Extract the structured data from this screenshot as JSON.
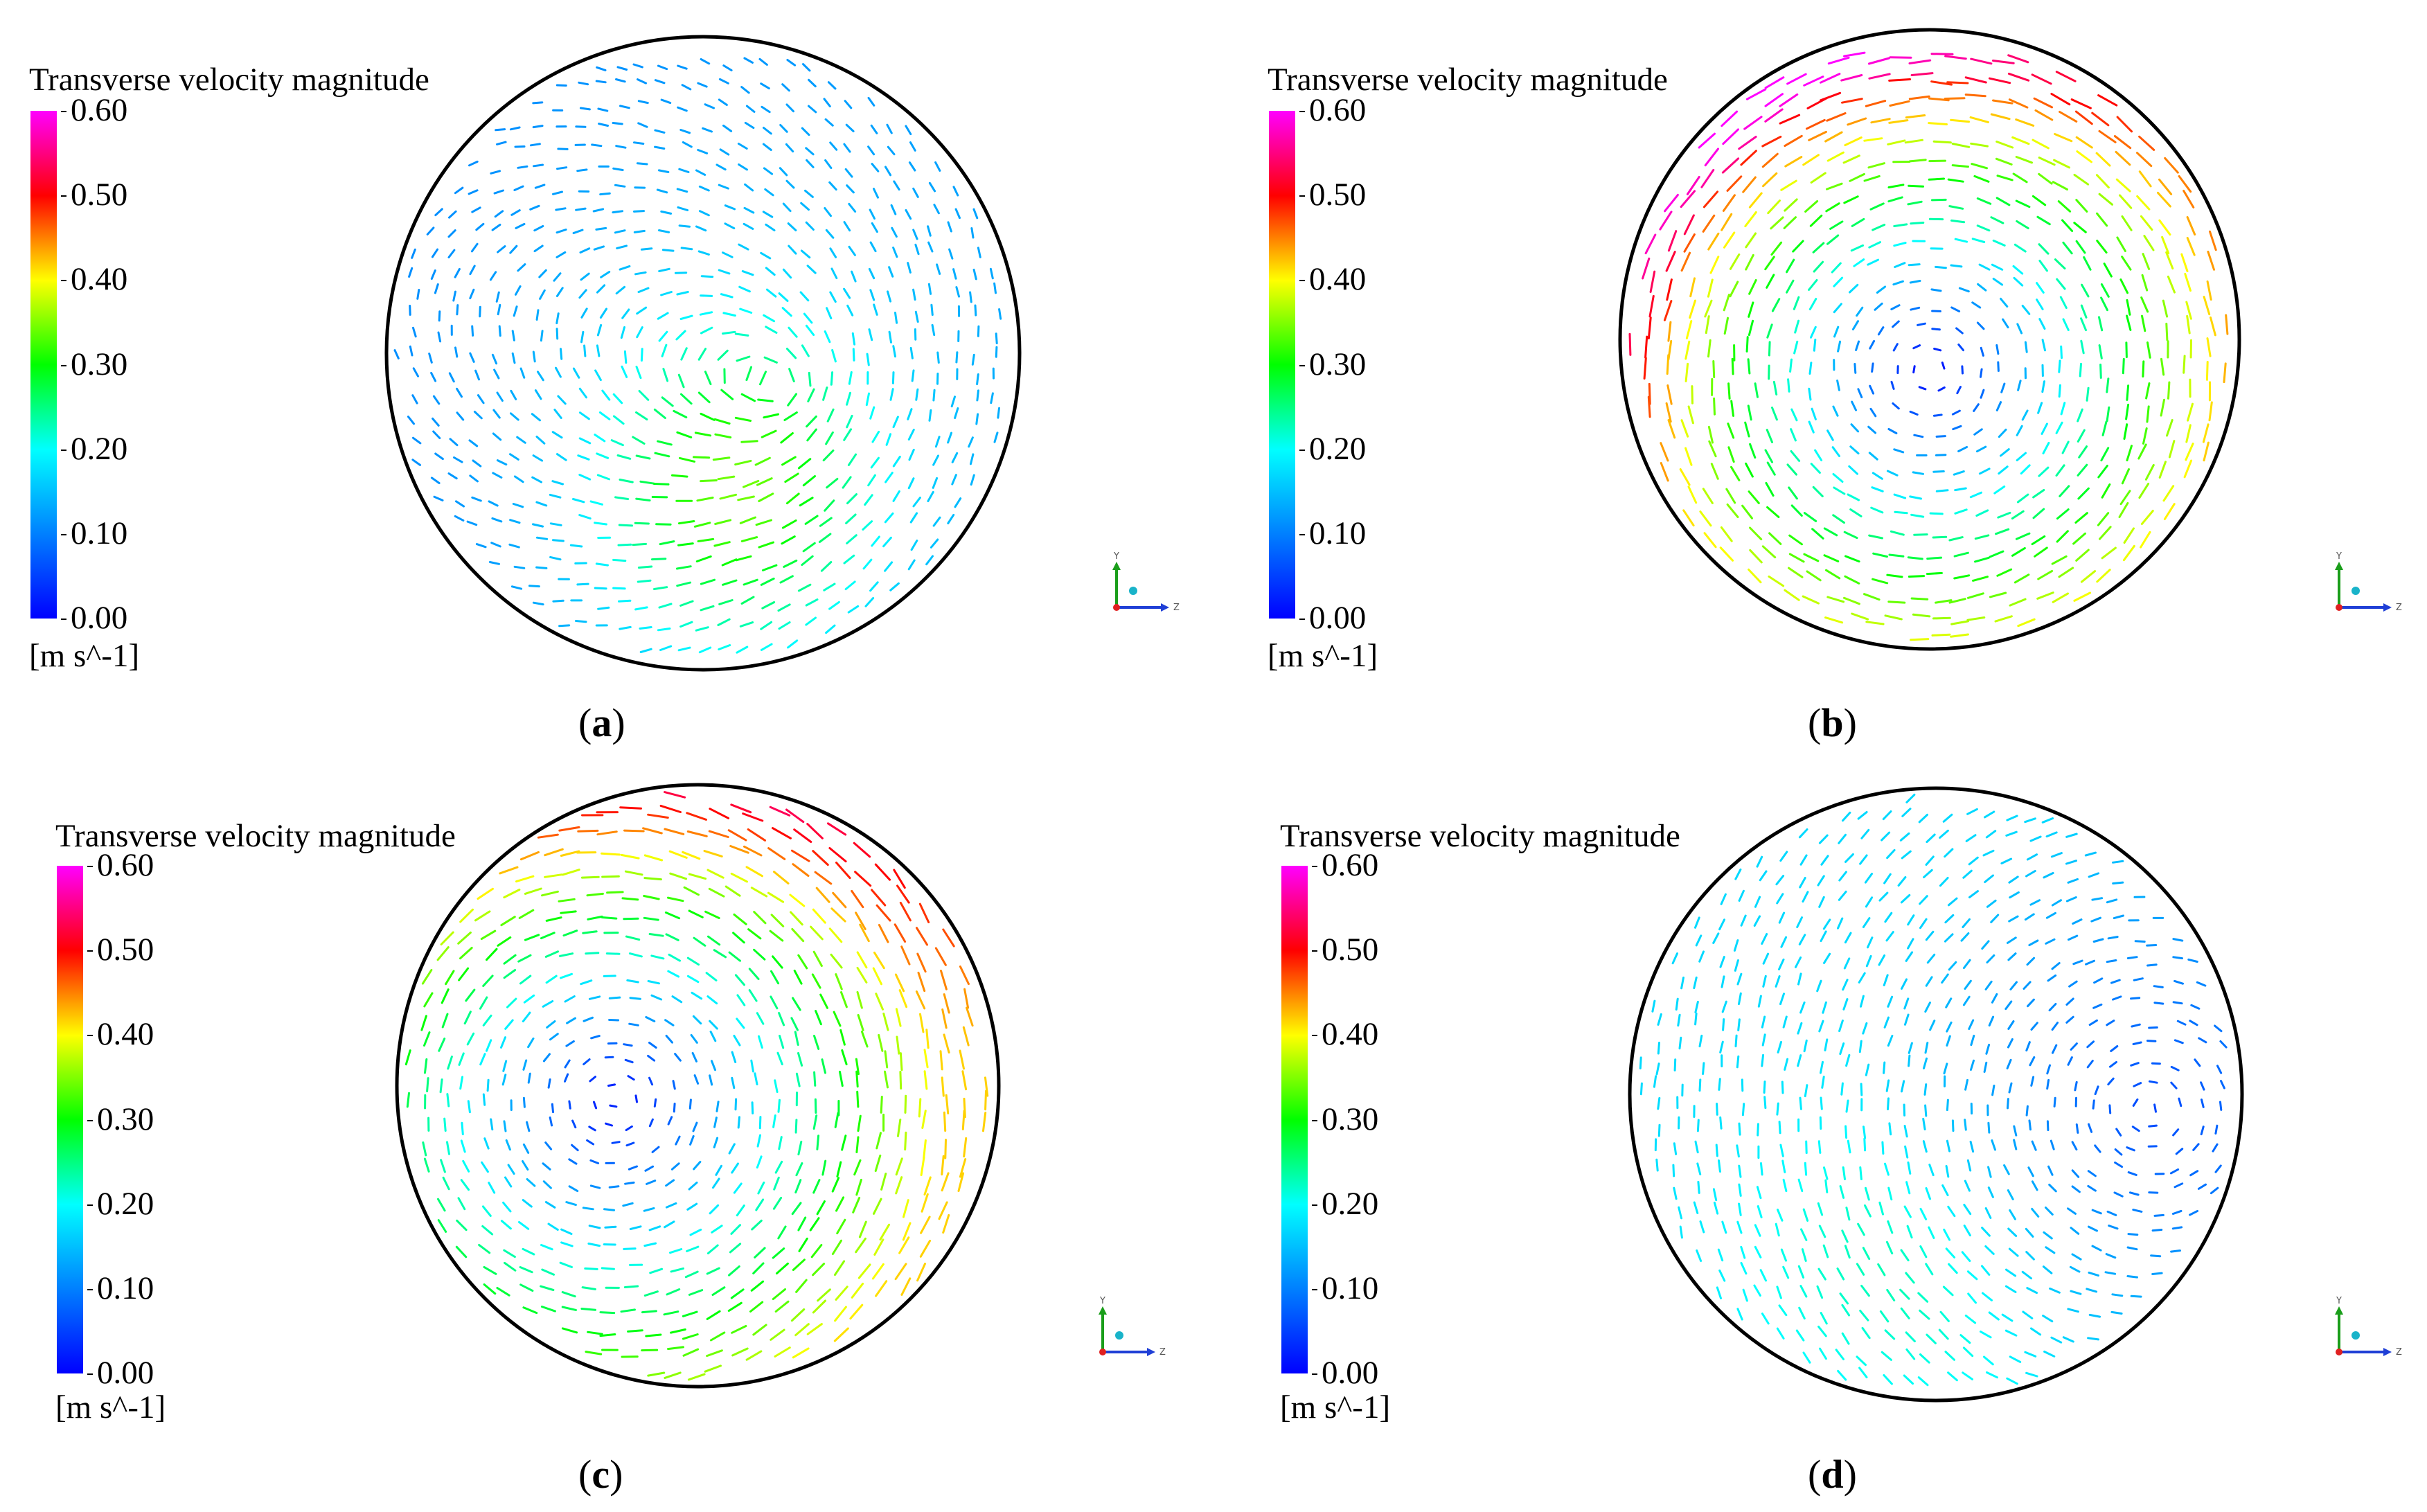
{
  "figure": {
    "legend_title": "Transverse velocity magnitude",
    "ticks": [
      "0.60",
      "0.50",
      "0.40",
      "0.30",
      "0.20",
      "0.10",
      "0.00"
    ],
    "unit": "[m s^-1]",
    "colormap": [
      "#0000ff",
      "#00ffff",
      "#00ff00",
      "#ffff00",
      "#ff8000",
      "#ff0000",
      "#ff00ff"
    ],
    "axis_labels": {
      "y": "Y",
      "z": "Z"
    }
  },
  "panels": [
    {
      "id": "a",
      "caption": {
        "open": "(",
        "letter": "a",
        "close": ")"
      },
      "flow_pattern": "low speed, central strip of upward flow, peak near lower center",
      "vortex_center": {
        "u": 0.25,
        "v": -0.1
      },
      "max_speed": 0.33,
      "peak_region": "lower-center"
    },
    {
      "id": "b",
      "caption": {
        "open": "(",
        "letter": "b",
        "close": ")"
      },
      "flow_pattern": "single vortex, high speed at upper-left rim",
      "vortex_center": {
        "u": 0.0,
        "v": -0.1
      },
      "max_speed": 0.52,
      "peak_region": "upper-left"
    },
    {
      "id": "c",
      "caption": {
        "open": "(",
        "letter": "c",
        "close": ")"
      },
      "flow_pattern": "single vortex, high speed at top rim",
      "vortex_center": {
        "u": -0.28,
        "v": -0.05
      },
      "max_speed": 0.52,
      "peak_region": "top"
    },
    {
      "id": "d",
      "caption": {
        "open": "(",
        "letter": "d",
        "close": ")"
      },
      "flow_pattern": "low speed, vortex near right rim",
      "vortex_center": {
        "u": 0.7,
        "v": -0.05
      },
      "max_speed": 0.21,
      "peak_region": "lower-left"
    }
  ]
}
